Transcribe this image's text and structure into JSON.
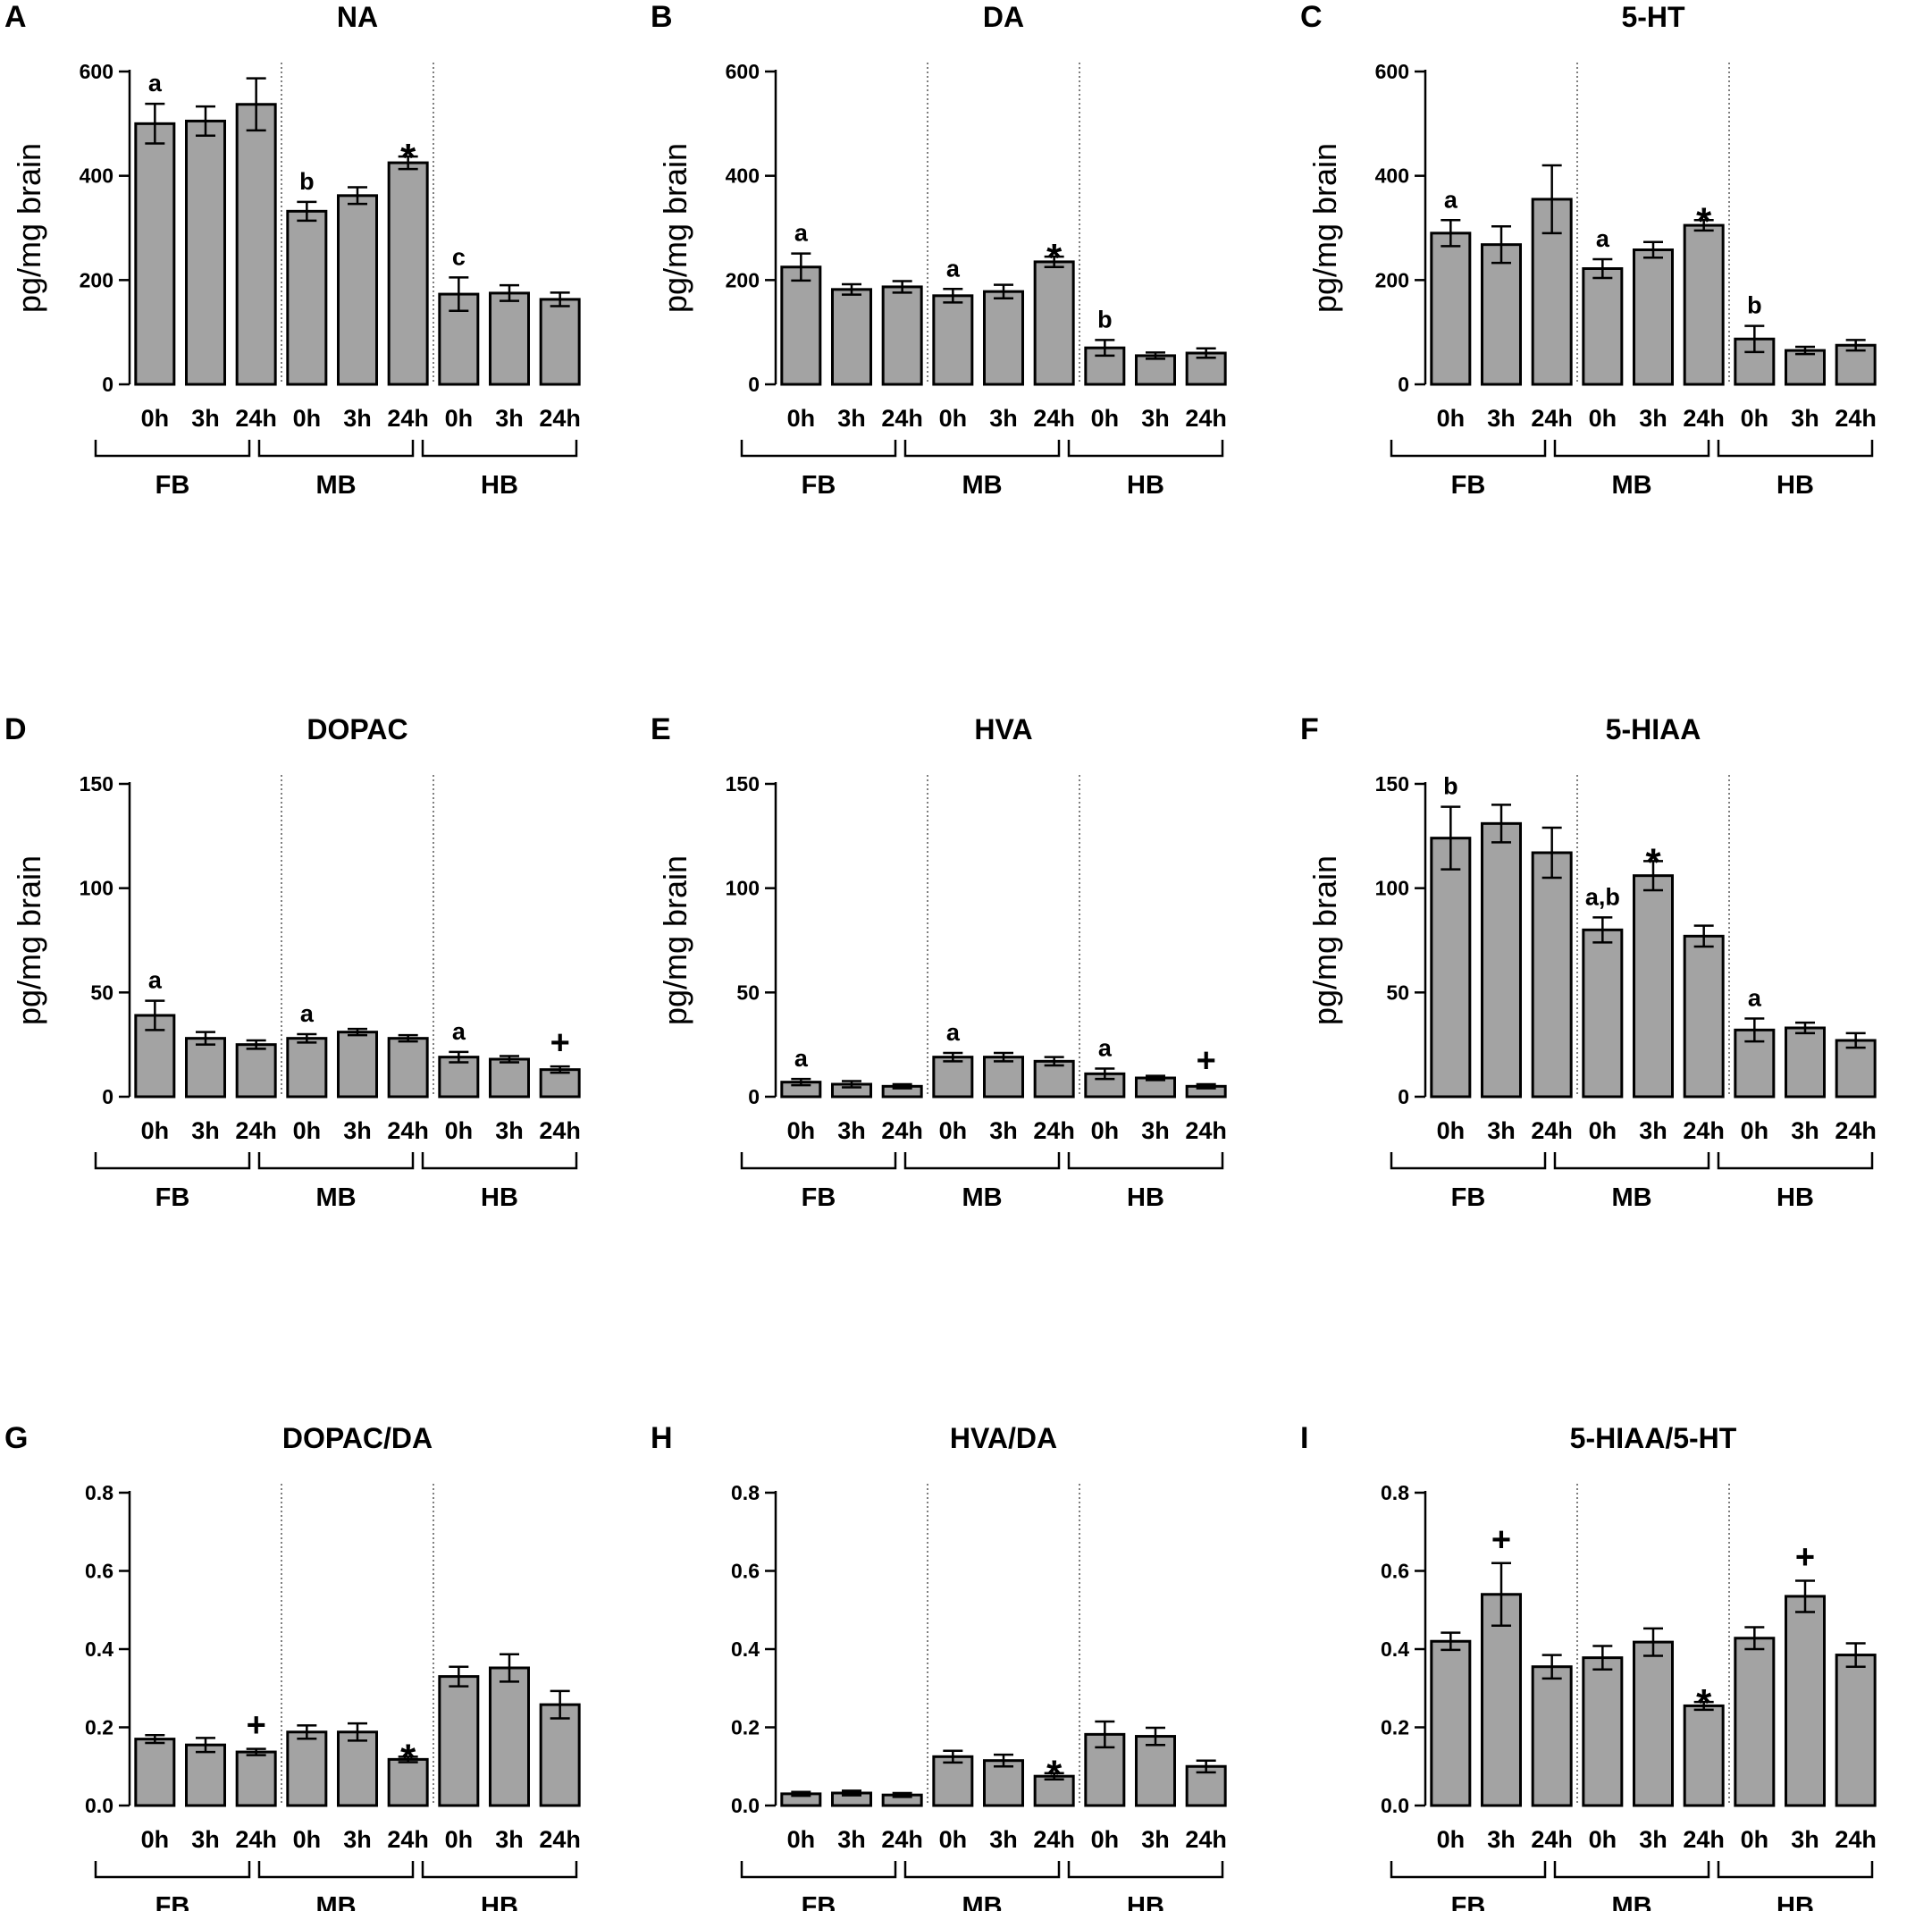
{
  "figure": {
    "x_tick_labels": [
      "0h",
      "3h",
      "24h"
    ],
    "group_labels": [
      "FB",
      "MB",
      "HB"
    ],
    "ylabel": "pg/mg brain"
  },
  "chart_data": [
    {
      "type": "bar",
      "panel": "A",
      "title": "NA",
      "ylabel": "pg/mg brain",
      "ylim": [
        0,
        600
      ],
      "yticks": [
        "0",
        "200",
        "400",
        "600"
      ],
      "categories": [
        "0h",
        "3h",
        "24h",
        "0h",
        "3h",
        "24h",
        "0h",
        "3h",
        "24h"
      ],
      "groups": [
        "FB",
        "MB",
        "HB"
      ],
      "values": [
        500,
        505,
        537,
        332,
        362,
        425,
        173,
        175,
        163
      ],
      "errors": [
        38,
        28,
        50,
        18,
        16,
        12,
        32,
        15,
        13
      ],
      "annotations": [
        "a",
        "",
        "",
        "b",
        "",
        "*",
        "c",
        "",
        ""
      ]
    },
    {
      "type": "bar",
      "panel": "B",
      "title": "DA",
      "ylabel": "pg/mg brain",
      "ylim": [
        0,
        600
      ],
      "yticks": [
        "0",
        "200",
        "400",
        "600"
      ],
      "categories": [
        "0h",
        "3h",
        "24h",
        "0h",
        "3h",
        "24h",
        "0h",
        "3h",
        "24h"
      ],
      "groups": [
        "FB",
        "MB",
        "HB"
      ],
      "values": [
        225,
        182,
        187,
        170,
        178,
        235,
        70,
        55,
        60
      ],
      "errors": [
        26,
        10,
        11,
        13,
        13,
        10,
        15,
        6,
        9
      ],
      "annotations": [
        "a",
        "",
        "",
        "a",
        "",
        "*",
        "b",
        "",
        ""
      ]
    },
    {
      "type": "bar",
      "panel": "C",
      "title": "5-HT",
      "ylabel": "pg/mg brain",
      "ylim": [
        0,
        600
      ],
      "yticks": [
        "0",
        "200",
        "400",
        "600"
      ],
      "categories": [
        "0h",
        "3h",
        "24h",
        "0h",
        "3h",
        "24h",
        "0h",
        "3h",
        "24h"
      ],
      "groups": [
        "FB",
        "MB",
        "HB"
      ],
      "values": [
        290,
        268,
        355,
        222,
        258,
        305,
        87,
        65,
        75
      ],
      "errors": [
        25,
        35,
        65,
        18,
        15,
        10,
        25,
        7,
        10
      ],
      "annotations": [
        "a",
        "",
        "",
        "a",
        "",
        "*",
        "b",
        "",
        ""
      ]
    },
    {
      "type": "bar",
      "panel": "D",
      "title": "DOPAC",
      "ylabel": "pg/mg brain",
      "ylim": [
        0,
        150
      ],
      "yticks": [
        "0",
        "50",
        "100",
        "150"
      ],
      "categories": [
        "0h",
        "3h",
        "24h",
        "0h",
        "3h",
        "24h",
        "0h",
        "3h",
        "24h"
      ],
      "groups": [
        "FB",
        "MB",
        "HB"
      ],
      "values": [
        39,
        28,
        25,
        28,
        31,
        28,
        19,
        18,
        13
      ],
      "errors": [
        7,
        3,
        2,
        2,
        1.5,
        1.5,
        2.5,
        1.5,
        1.5
      ],
      "annotations": [
        "a",
        "",
        "",
        "a",
        "",
        "",
        "a",
        "",
        "+"
      ]
    },
    {
      "type": "bar",
      "panel": "E",
      "title": "HVA",
      "ylabel": "pg/mg brain",
      "ylim": [
        0,
        150
      ],
      "yticks": [
        "0",
        "50",
        "100",
        "150"
      ],
      "categories": [
        "0h",
        "3h",
        "24h",
        "0h",
        "3h",
        "24h",
        "0h",
        "3h",
        "24h"
      ],
      "groups": [
        "FB",
        "MB",
        "HB"
      ],
      "values": [
        7,
        6,
        5,
        19,
        19,
        17,
        11,
        9,
        5
      ],
      "errors": [
        1.5,
        1.5,
        1,
        2,
        2,
        2,
        2.5,
        1,
        1
      ],
      "annotations": [
        "a",
        "",
        "",
        "a",
        "",
        "",
        "a",
        "",
        "+"
      ]
    },
    {
      "type": "bar",
      "panel": "F",
      "title": "5-HIAA",
      "ylabel": "pg/mg brain",
      "ylim": [
        0,
        150
      ],
      "yticks": [
        "0",
        "50",
        "100",
        "150"
      ],
      "categories": [
        "0h",
        "3h",
        "24h",
        "0h",
        "3h",
        "24h",
        "0h",
        "3h",
        "24h"
      ],
      "groups": [
        "FB",
        "MB",
        "HB"
      ],
      "values": [
        124,
        131,
        117,
        80,
        106,
        77,
        32,
        33,
        27
      ],
      "errors": [
        15,
        9,
        12,
        6,
        7,
        5,
        5.5,
        2.5,
        3.5
      ],
      "annotations": [
        "b",
        "",
        "",
        "a,b",
        "*",
        "",
        "a",
        "",
        ""
      ]
    },
    {
      "type": "bar",
      "panel": "G",
      "title": "DOPAC/DA",
      "ylabel": "",
      "ylim": [
        0,
        0.8
      ],
      "yticks": [
        "0.0",
        "0.2",
        "0.4",
        "0.6",
        "0.8"
      ],
      "categories": [
        "0h",
        "3h",
        "24h",
        "0h",
        "3h",
        "24h",
        "0h",
        "3h",
        "24h"
      ],
      "groups": [
        "FB",
        "MB",
        "HB"
      ],
      "values": [
        0.17,
        0.155,
        0.137,
        0.188,
        0.188,
        0.118,
        0.33,
        0.352,
        0.258
      ],
      "errors": [
        0.01,
        0.018,
        0.008,
        0.017,
        0.022,
        0.007,
        0.025,
        0.035,
        0.035
      ],
      "annotations": [
        "",
        "",
        "+",
        "",
        "",
        "*",
        "",
        "",
        ""
      ]
    },
    {
      "type": "bar",
      "panel": "H",
      "title": "HVA/DA",
      "ylabel": "",
      "ylim": [
        0,
        0.8
      ],
      "yticks": [
        "0.0",
        "0.2",
        "0.4",
        "0.6",
        "0.8"
      ],
      "categories": [
        "0h",
        "3h",
        "24h",
        "0h",
        "3h",
        "24h",
        "0h",
        "3h",
        "24h"
      ],
      "groups": [
        "FB",
        "MB",
        "HB"
      ],
      "values": [
        0.03,
        0.032,
        0.027,
        0.125,
        0.115,
        0.075,
        0.182,
        0.177,
        0.1
      ],
      "errors": [
        0.005,
        0.006,
        0.005,
        0.015,
        0.015,
        0.008,
        0.033,
        0.022,
        0.015
      ],
      "annotations": [
        "",
        "",
        "",
        "",
        "",
        "*",
        "",
        "",
        ""
      ]
    },
    {
      "type": "bar",
      "panel": "I",
      "title": "5-HIAA/5-HT",
      "ylabel": "",
      "ylim": [
        0,
        0.8
      ],
      "yticks": [
        "0.0",
        "0.2",
        "0.4",
        "0.6",
        "0.8"
      ],
      "categories": [
        "0h",
        "3h",
        "24h",
        "0h",
        "3h",
        "24h",
        "0h",
        "3h",
        "24h"
      ],
      "groups": [
        "FB",
        "MB",
        "HB"
      ],
      "values": [
        0.42,
        0.54,
        0.355,
        0.378,
        0.418,
        0.255,
        0.428,
        0.535,
        0.385
      ],
      "errors": [
        0.022,
        0.08,
        0.03,
        0.03,
        0.035,
        0.01,
        0.028,
        0.04,
        0.03
      ],
      "annotations": [
        "",
        "+",
        "",
        "",
        "",
        "*",
        "",
        "+",
        ""
      ]
    }
  ]
}
